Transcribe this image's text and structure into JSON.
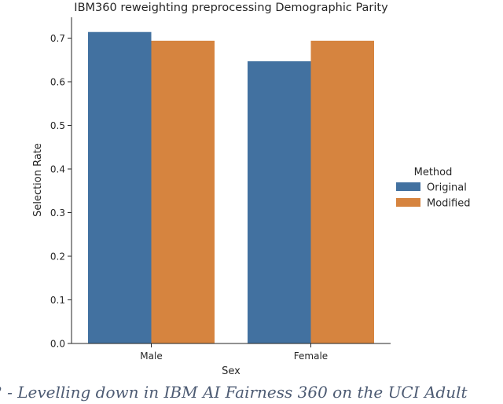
{
  "chart_data": {
    "type": "bar",
    "title": "IBM360 reweighting preprocessing Demographic Parity",
    "xlabel": "Sex",
    "ylabel": "Selection Rate",
    "categories": [
      "Male",
      "Female"
    ],
    "series": [
      {
        "name": "Original",
        "values": [
          0.714,
          0.647
        ],
        "color": "#4271a0"
      },
      {
        "name": "Modified",
        "values": [
          0.694,
          0.694
        ],
        "color": "#d6843f"
      }
    ],
    "ylim": [
      0,
      0.75
    ],
    "yticks": [
      0.0,
      0.1,
      0.2,
      0.3,
      0.4,
      0.5,
      0.6,
      0.7
    ],
    "ytick_labels": [
      "0.0",
      "0.1",
      "0.2",
      "0.3",
      "0.4",
      "0.5",
      "0.6",
      "0.7"
    ],
    "grid": false,
    "legend": {
      "title": "Method",
      "placement": "right"
    }
  },
  "caption": "2 - Levelling down in IBM AI Fairness 360 on the UCI Adult"
}
